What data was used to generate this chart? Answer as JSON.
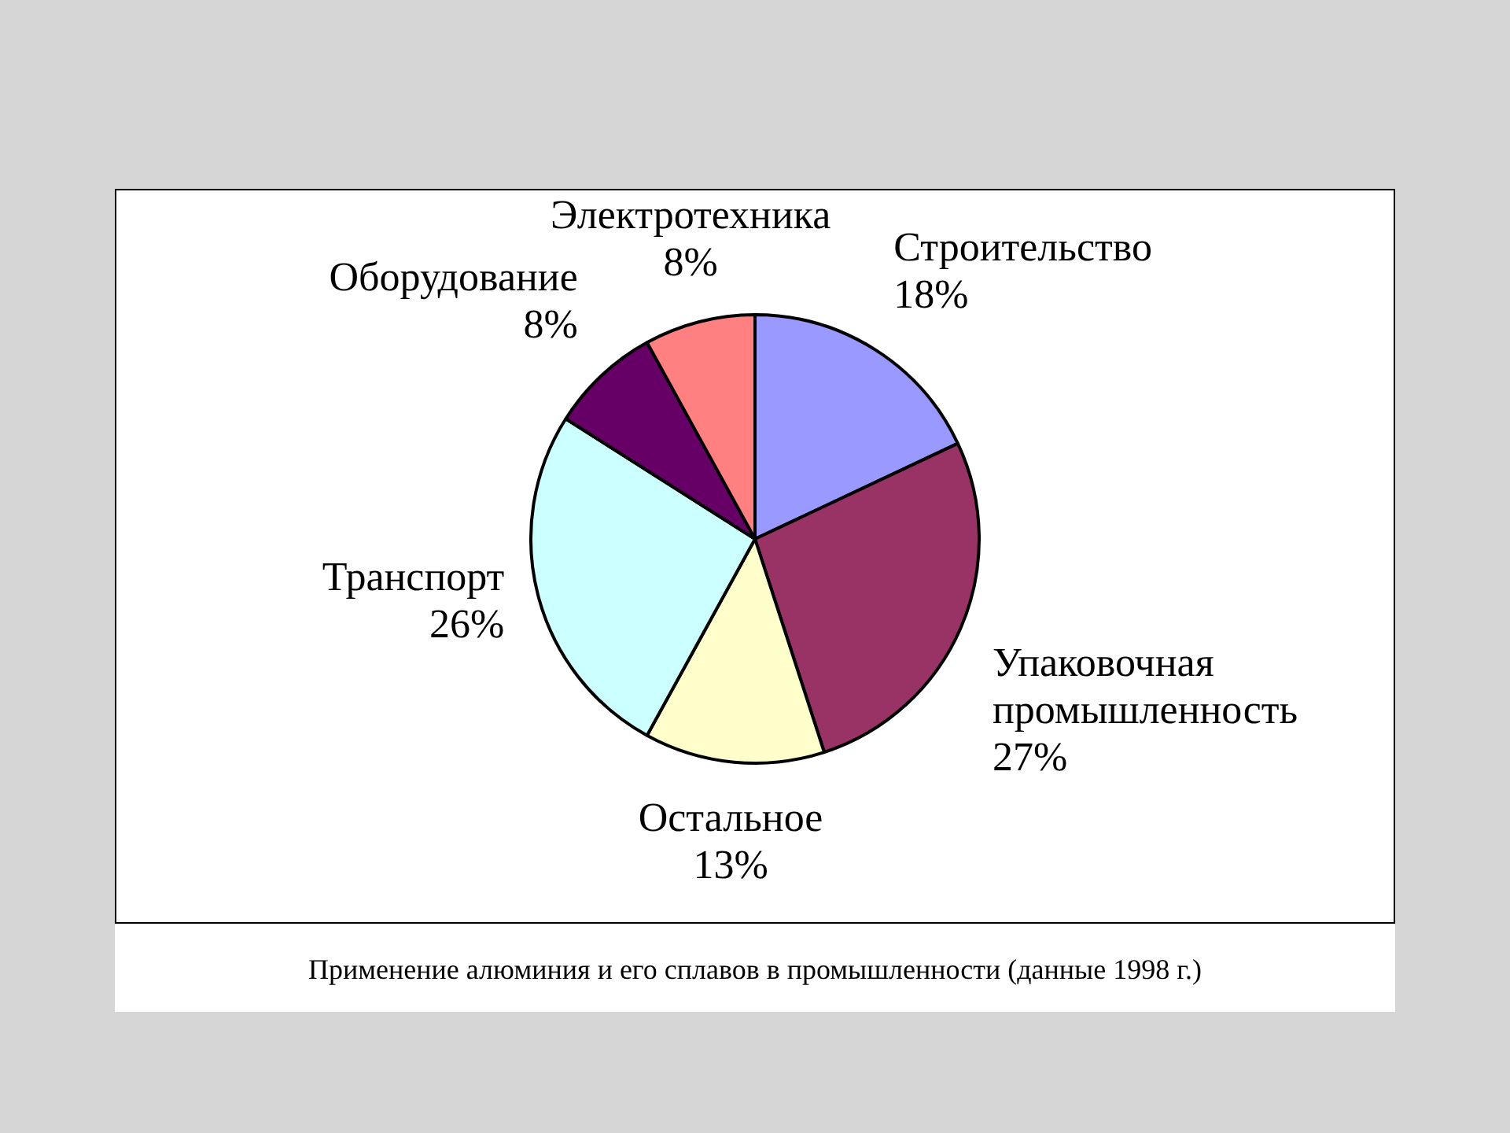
{
  "chart_data": {
    "type": "pie",
    "categories": [
      "Строительство",
      "Упаковочная промышленность",
      "Остальное",
      "Транспорт",
      "Оборудование",
      "Электротехника"
    ],
    "values": [
      18,
      27,
      13,
      26,
      8,
      8
    ],
    "colors": [
      "#9999ff",
      "#993366",
      "#ffffcc",
      "#ccffff",
      "#660066",
      "#ff8080"
    ],
    "value_labels": [
      "18%",
      "27%",
      "13%",
      "26%",
      "8%",
      "8%"
    ],
    "annotations": [
      "Применение алюминия и его сплавов в промышленности (данные 1998 г.)"
    ]
  }
}
